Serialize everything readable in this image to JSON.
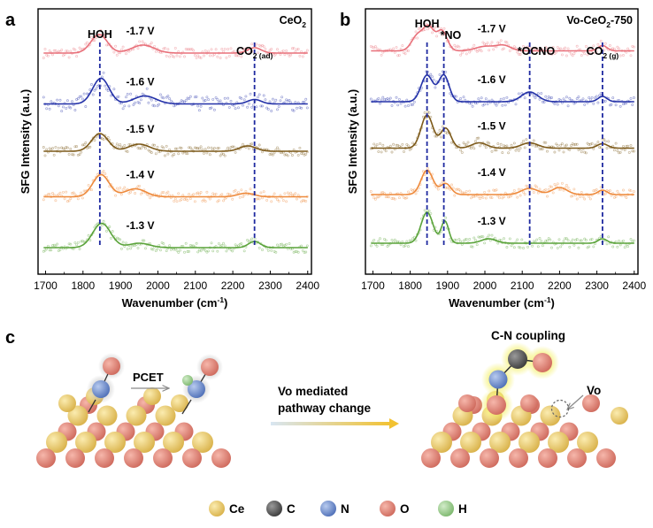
{
  "panels": {
    "a": {
      "letter": "a"
    },
    "b": {
      "letter": "b"
    },
    "c": {
      "letter": "c"
    }
  },
  "colors": {
    "-1.7 V": "#e8707a",
    "-1.6 V": "#2331a8",
    "-1.5 V": "#7d5a1a",
    "-1.4 V": "#ee8a3c",
    "-1.3 V": "#5aa33a",
    "dashed": "#1f2aa0",
    "ce": "#e8c76a",
    "c": "#555555",
    "n": "#6f8fd0",
    "o": "#e07f73",
    "h": "#94c88a"
  },
  "chart_data": [
    {
      "type": "line",
      "title": "CeO2",
      "title_parts": {
        "main": "CeO",
        "sub": "2"
      },
      "xlabel": "Wavenumber (cm",
      "xlabel_sup": "-1",
      "xlabel_end": ")",
      "ylabel": "SFG Intensity (a.u.)",
      "xlim": [
        1680,
        2410
      ],
      "xticks": [
        1700,
        1800,
        1900,
        2000,
        2100,
        2200,
        2300,
        2400
      ],
      "ylim": [
        0,
        6
      ],
      "markers": [
        {
          "x": 1845,
          "label": "HOH",
          "sub": ""
        },
        {
          "x": 2258,
          "label": "CO",
          "sub": "2 (ad)"
        }
      ],
      "series": [
        {
          "name": "-1.7 V",
          "baseline": 5.0,
          "peaks": [
            [
              1843,
              22,
              0.42
            ],
            [
              1960,
              30,
              0.18
            ],
            [
              2258,
              18,
              0.12
            ]
          ]
        },
        {
          "name": "-1.6 V",
          "baseline": 3.85,
          "peaks": [
            [
              1848,
              22,
              0.58
            ],
            [
              1965,
              30,
              0.18
            ],
            [
              2258,
              18,
              0.1
            ]
          ]
        },
        {
          "name": "-1.5 V",
          "baseline": 2.78,
          "peaks": [
            [
              1845,
              22,
              0.4
            ],
            [
              1950,
              28,
              0.16
            ],
            [
              2240,
              22,
              0.12
            ]
          ]
        },
        {
          "name": "-1.4 V",
          "baseline": 1.75,
          "peaks": [
            [
              1848,
              22,
              0.5
            ],
            [
              1940,
              28,
              0.18
            ],
            [
              2235,
              22,
              0.08
            ]
          ]
        },
        {
          "name": "-1.3 V",
          "baseline": 0.6,
          "peaks": [
            [
              1850,
              24,
              0.55
            ],
            [
              1950,
              28,
              0.1
            ],
            [
              2258,
              16,
              0.14
            ]
          ]
        }
      ]
    },
    {
      "type": "line",
      "title": "Vo-CeO2-750",
      "title_parts": {
        "pre": "Vo-CeO",
        "sub": "2",
        "post": "-750"
      },
      "xlabel": "Wavenumber (cm",
      "xlabel_sup": "-1",
      "xlabel_end": ")",
      "ylabel": "SFG Intensity (a.u.)",
      "xlim": [
        1680,
        2410
      ],
      "xticks": [
        1700,
        1800,
        1900,
        2000,
        2100,
        2200,
        2300,
        2400
      ],
      "ylim": [
        0,
        6
      ],
      "markers": [
        {
          "x": 1845,
          "label": "HOH",
          "sub": ""
        },
        {
          "x": 1890,
          "label": "*NO",
          "sub": ""
        },
        {
          "x": 2120,
          "label": "*OCNO",
          "sub": ""
        },
        {
          "x": 2315,
          "label": "CO",
          "sub": "2 (g)"
        }
      ],
      "series": [
        {
          "name": "-1.7 V",
          "baseline": 5.05,
          "peaks": [
            [
              1820,
              16,
              0.35
            ],
            [
              1850,
              14,
              0.5
            ],
            [
              1885,
              14,
              0.45
            ],
            [
              2000,
              25,
              0.1
            ],
            [
              2050,
              20,
              0.12
            ],
            [
              2315,
              12,
              0.12
            ]
          ]
        },
        {
          "name": "-1.6 V",
          "baseline": 3.9,
          "peaks": [
            [
              1845,
              16,
              0.6
            ],
            [
              1890,
              14,
              0.6
            ],
            [
              2120,
              22,
              0.22
            ],
            [
              2315,
              12,
              0.12
            ]
          ]
        },
        {
          "name": "-1.5 V",
          "baseline": 2.85,
          "peaks": [
            [
              1845,
              16,
              0.75
            ],
            [
              1895,
              14,
              0.45
            ],
            [
              1985,
              20,
              0.12
            ],
            [
              2120,
              22,
              0.12
            ],
            [
              2315,
              14,
              0.1
            ]
          ]
        },
        {
          "name": "-1.4 V",
          "baseline": 1.8,
          "peaks": [
            [
              1845,
              16,
              0.55
            ],
            [
              1895,
              14,
              0.25
            ],
            [
              2120,
              22,
              0.14
            ],
            [
              2200,
              20,
              0.16
            ],
            [
              2315,
              12,
              0.1
            ]
          ]
        },
        {
          "name": "-1.3 V",
          "baseline": 0.7,
          "peaks": [
            [
              1845,
              16,
              0.7
            ],
            [
              1893,
              10,
              0.5
            ],
            [
              2010,
              20,
              0.1
            ],
            [
              2315,
              12,
              0.1
            ]
          ]
        }
      ]
    }
  ],
  "diagram": {
    "pcet_label": "PCET",
    "arrow_label_line1": "Vo mediated",
    "arrow_label_line2": "pathway change",
    "cn_label": "C-N coupling",
    "vo_label": "Vo"
  },
  "legend": [
    {
      "label": "Ce",
      "color_key": "ce"
    },
    {
      "label": "C",
      "color_key": "c"
    },
    {
      "label": "N",
      "color_key": "n"
    },
    {
      "label": "O",
      "color_key": "o"
    },
    {
      "label": "H",
      "color_key": "h"
    }
  ]
}
